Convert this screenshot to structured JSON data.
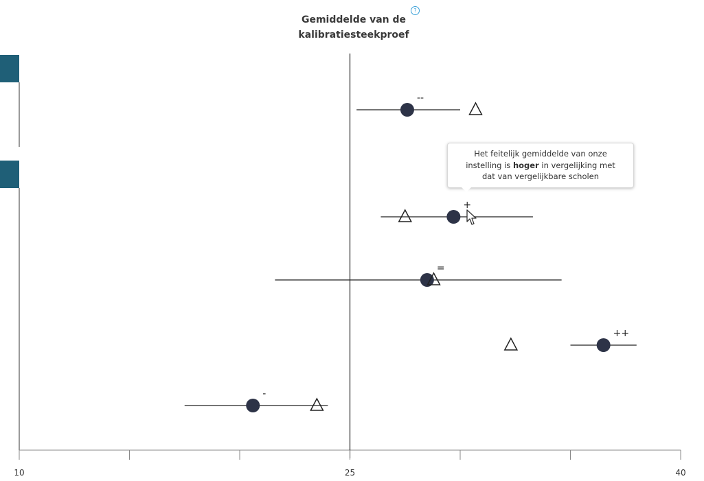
{
  "reference": {
    "title_line1": "Gemiddelde van de",
    "title_line2": "kalibratiesteekproef",
    "help_icon": "question-circle-icon"
  },
  "tooltip": {
    "line1": "Het feitelijk gemiddelde van onze",
    "line2_before": "instelling is ",
    "line2_bold": "hoger",
    "line2_after": " in vergelijking met",
    "line3": "dat van  vergelijkbare scholen"
  },
  "colors": {
    "dot": "#2d3347",
    "accent_bar": "#1f5f77",
    "line": "#222222",
    "axis": "#888888"
  },
  "chart_data": {
    "type": "scatter",
    "x_range": [
      10,
      40
    ],
    "x_ticks": [
      "10",
      "25",
      "40"
    ],
    "reference_x": 25,
    "rows": [
      {
        "value": 27.6,
        "ci": [
          25.3,
          30.0
        ],
        "expected": 30.7,
        "label": "--"
      },
      {
        "value": 29.7,
        "ci": [
          26.4,
          33.3
        ],
        "expected": 27.5,
        "label": "+"
      },
      {
        "value": 28.5,
        "ci": [
          21.6,
          34.6
        ],
        "expected": 28.8,
        "label": "="
      },
      {
        "value": 36.5,
        "ci": [
          35.0,
          38.0
        ],
        "expected": 32.3,
        "label": "++"
      },
      {
        "value": 20.6,
        "ci": [
          17.5,
          24.0
        ],
        "expected": 23.5,
        "label": "-"
      }
    ]
  }
}
